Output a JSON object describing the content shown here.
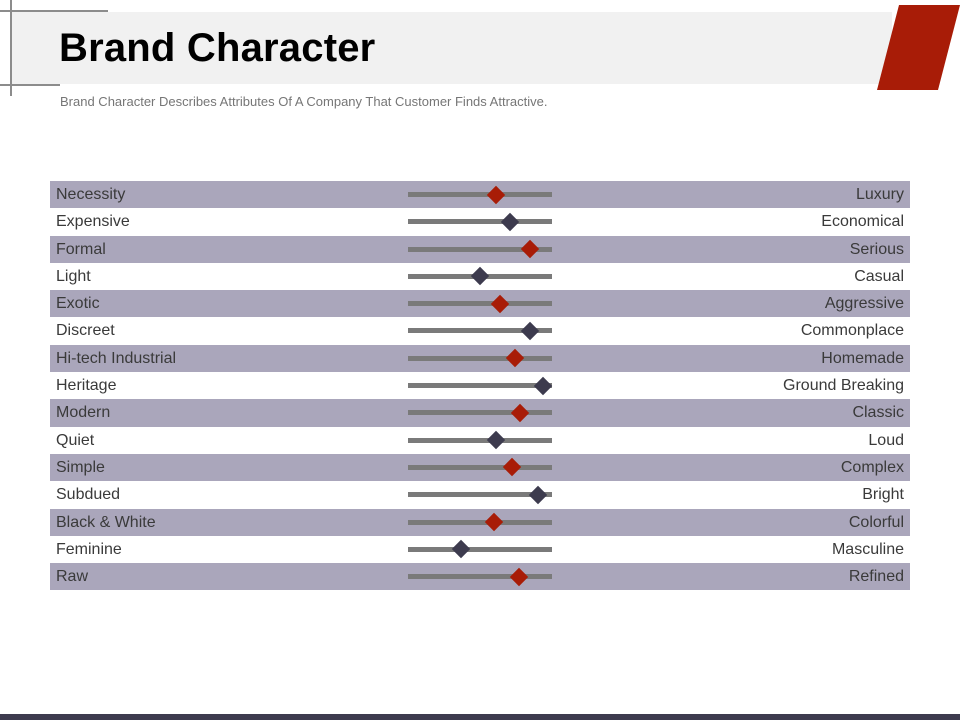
{
  "header": {
    "title": "Brand Character",
    "subtitle": "Brand Character Describes Attributes Of A Company That Customer Finds Attractive."
  },
  "colors": {
    "accent_red": "#a81c07",
    "marker_dark": "#3d3b4e",
    "row_shade": "#aaa6bb",
    "track": "#7a7a7a",
    "title_band": "#f1f1f1"
  },
  "scale": {
    "rows": [
      {
        "left": "Necessity",
        "right": "Luxury",
        "value": 0.61,
        "marker": "red"
      },
      {
        "left": "Expensive",
        "right": "Economical",
        "value": 0.71,
        "marker": "dark"
      },
      {
        "left": "Formal",
        "right": "Serious",
        "value": 0.85,
        "marker": "red"
      },
      {
        "left": "Light",
        "right": "Casual",
        "value": 0.5,
        "marker": "dark"
      },
      {
        "left": "Exotic",
        "right": "Aggressive",
        "value": 0.64,
        "marker": "red"
      },
      {
        "left": "Discreet",
        "right": "Commonplace",
        "value": 0.85,
        "marker": "dark"
      },
      {
        "left": "Hi-tech Industrial",
        "right": "Homemade",
        "value": 0.74,
        "marker": "red"
      },
      {
        "left": "Heritage",
        "right": "Ground Breaking",
        "value": 0.94,
        "marker": "dark"
      },
      {
        "left": "Modern",
        "right": "Classic",
        "value": 0.78,
        "marker": "red"
      },
      {
        "left": "Quiet",
        "right": "Loud",
        "value": 0.61,
        "marker": "dark"
      },
      {
        "left": "Simple",
        "right": "Complex",
        "value": 0.72,
        "marker": "red"
      },
      {
        "left": "Subdued",
        "right": "Bright",
        "value": 0.9,
        "marker": "dark"
      },
      {
        "left": "Black & White",
        "right": "Colorful",
        "value": 0.6,
        "marker": "red"
      },
      {
        "left": "Feminine",
        "right": "Masculine",
        "value": 0.37,
        "marker": "dark"
      },
      {
        "left": "Raw",
        "right": "Refined",
        "value": 0.77,
        "marker": "red"
      }
    ]
  }
}
